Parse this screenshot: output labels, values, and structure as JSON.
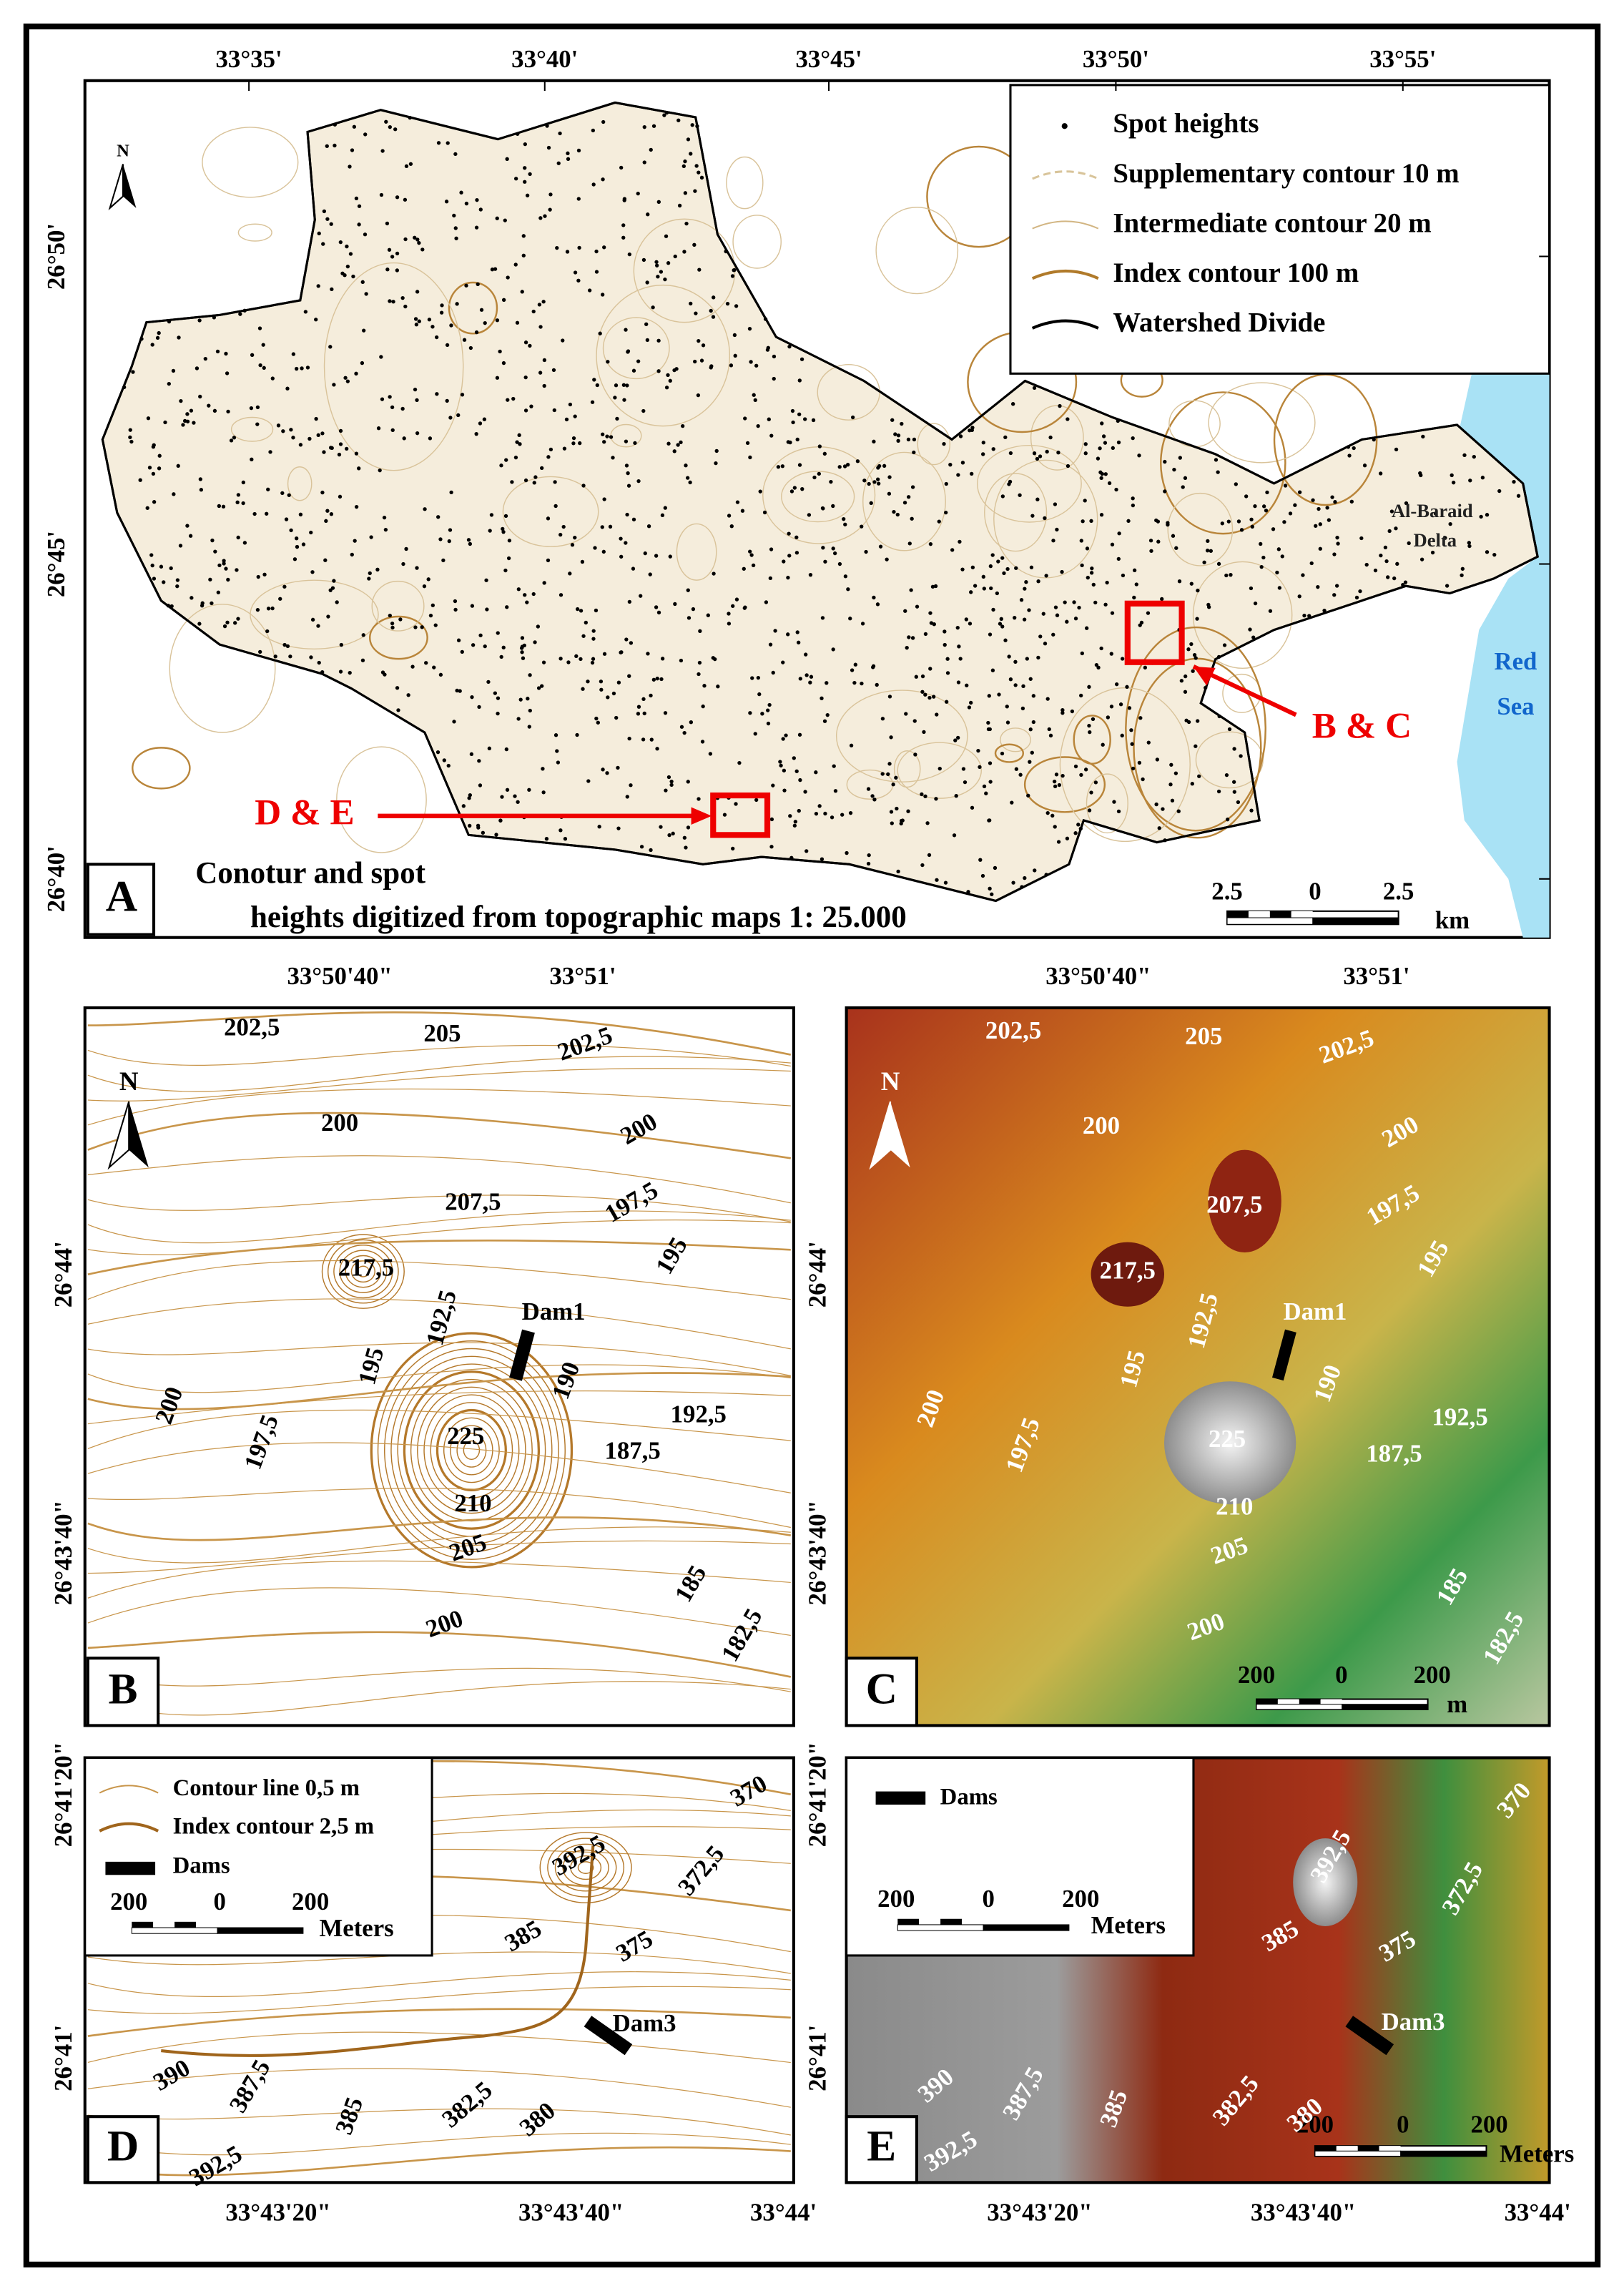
{
  "panel_a": {
    "letter": "A",
    "north": "N",
    "title_lines": [
      "Conotur and spot",
      "heights digitized from topographic maps 1: 25.000"
    ],
    "top_labels": [
      "33°35'",
      "33°40'",
      "33°45'",
      "33°50'",
      "33°55'"
    ],
    "left_labels": [
      "26°50'",
      "26°45'",
      "26°40'"
    ],
    "legend": [
      "Spot heights",
      "Supplementary contour 10 m",
      "Intermediate contour 20 m",
      "Index contour 100 m",
      "Watershed Divide"
    ],
    "annotations": [
      "Al-Baraid",
      "Delta",
      "Red",
      "Sea",
      "B & C",
      "D & E"
    ],
    "scale": [
      "2.5",
      "0",
      "2.5",
      "km"
    ]
  },
  "panel_b": {
    "letter": "B",
    "north": "N",
    "top_labels": [
      "33°50'40\"",
      "33°51'"
    ],
    "left_labels": [
      "26°44'",
      "26°43'40\""
    ],
    "contour_labels": [
      "202,5",
      "205",
      "202,5",
      "200",
      "200",
      "207,5",
      "197,5",
      "195",
      "217,5",
      "192,5",
      "195",
      "190",
      "200",
      "197,5",
      "192,5",
      "225",
      "187,5",
      "210",
      "205",
      "185",
      "200",
      "182,5"
    ],
    "dam": "Dam1"
  },
  "panel_c": {
    "letter": "C",
    "north": "N",
    "top_labels": [
      "33°50'40\"",
      "33°51'"
    ],
    "left_labels": [
      "26°44'",
      "26°43'40\""
    ],
    "contour_labels": [
      "202,5",
      "205",
      "202,5",
      "200",
      "200",
      "207,5",
      "197,5",
      "195",
      "217,5",
      "192,5",
      "195",
      "190",
      "200",
      "197,5",
      "192,5",
      "225",
      "187,5",
      "210",
      "205",
      "185",
      "200",
      "182,5"
    ],
    "dam": "Dam1",
    "scale": [
      "200",
      "0",
      "200",
      "m"
    ]
  },
  "panel_d": {
    "letter": "D",
    "left_labels": [
      "26°41'20\"",
      "26°41'"
    ],
    "bottom_labels": [
      "33°43'20\"",
      "33°43'40\"",
      "33°44'"
    ],
    "legend": [
      "Contour line 0,5 m",
      "Index contour 2,5 m",
      "Dams"
    ],
    "scale": [
      "200",
      "0",
      "200",
      "Meters"
    ],
    "contour_labels": [
      "370",
      "392,5",
      "372,5",
      "385",
      "375",
      "390",
      "387,5",
      "385",
      "382,5",
      "380",
      "392,5"
    ],
    "dam": "Dam3"
  },
  "panel_e": {
    "letter": "E",
    "left_labels": [
      "26°41'20\"",
      "26°41'"
    ],
    "bottom_labels": [
      "33°43'20\"",
      "33°43'40\"",
      "33°44'"
    ],
    "legend": [
      "Dams"
    ],
    "scale": [
      "200",
      "0",
      "200",
      "Meters"
    ],
    "contour_labels": [
      "370",
      "392,5",
      "372,5",
      "385",
      "375",
      "390",
      "387,5",
      "385",
      "382,5",
      "380",
      "392,5"
    ],
    "dam": "Dam3"
  }
}
